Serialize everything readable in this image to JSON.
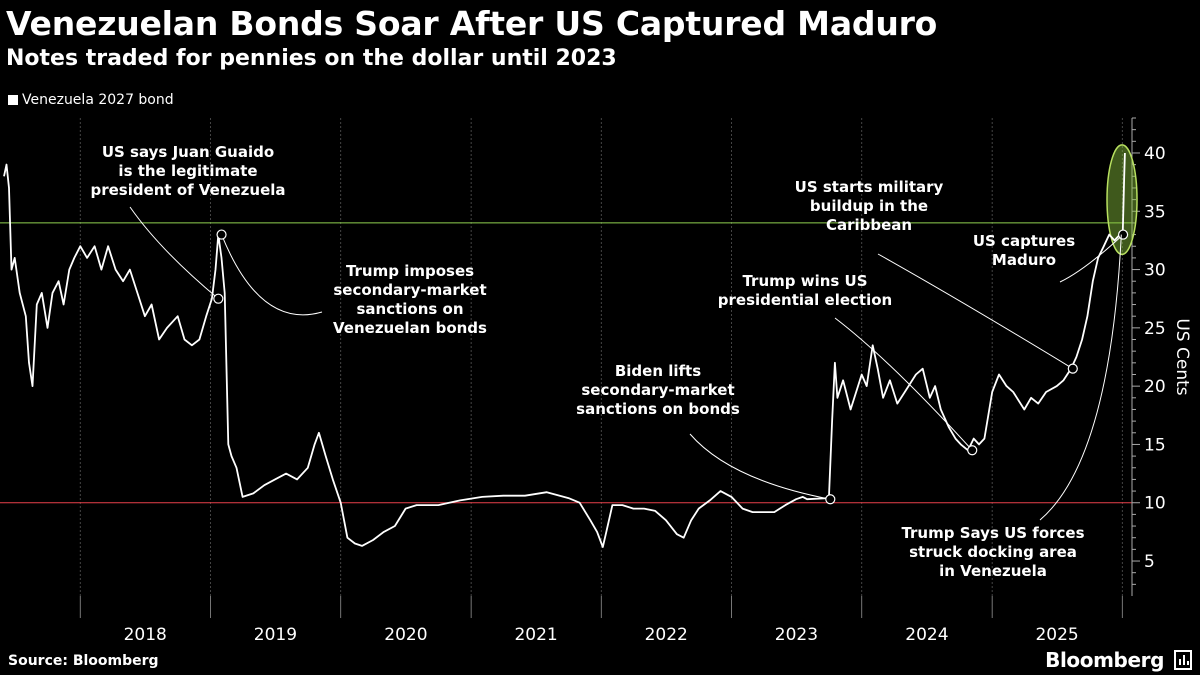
{
  "header": {
    "title": "Venezuelan Bonds Soar After US Captured Maduro",
    "subtitle": "Notes traded for pennies on the dollar until 2023"
  },
  "legend": {
    "label": "Venezuela 2027 bond"
  },
  "footer": {
    "source": "Source: Bloomberg",
    "brand": "Bloomberg"
  },
  "colors": {
    "background": "#000000",
    "line": "#ffffff",
    "grid": "#444444",
    "reference_high": "#8fd14f",
    "reference_low": "#e8414a",
    "highlight": "#8cc63f"
  },
  "chart_data": {
    "type": "line",
    "title": "Venezuelan Bonds Soar After US Captured Maduro",
    "subtitle": "Notes traded for pennies on the dollar until 2023",
    "ylabel": "US Cents",
    "ylim": [
      2,
      43
    ],
    "xlim": [
      "2017-06-01",
      "2026-01-28"
    ],
    "yticks": [
      5,
      10,
      15,
      20,
      25,
      30,
      35,
      40
    ],
    "xticks": [
      "2018",
      "2019",
      "2020",
      "2021",
      "2022",
      "2023",
      "2024",
      "2025"
    ],
    "grid": "vertical",
    "legend": "top-left",
    "reference_lines": [
      {
        "y": 34,
        "color": "#8fd14f"
      },
      {
        "y": 10,
        "color": "#e8414a"
      }
    ],
    "series": [
      {
        "name": "Venezuela 2027 bond",
        "points": [
          [
            "2017-06-01",
            38
          ],
          [
            "2017-06-08",
            39
          ],
          [
            "2017-06-15",
            37
          ],
          [
            "2017-06-22",
            30
          ],
          [
            "2017-07-01",
            31
          ],
          [
            "2017-07-15",
            28
          ],
          [
            "2017-08-01",
            26
          ],
          [
            "2017-08-10",
            22
          ],
          [
            "2017-08-20",
            20
          ],
          [
            "2017-09-01",
            27
          ],
          [
            "2017-09-15",
            28
          ],
          [
            "2017-10-01",
            25
          ],
          [
            "2017-10-15",
            28
          ],
          [
            "2017-11-01",
            29
          ],
          [
            "2017-11-15",
            27
          ],
          [
            "2017-12-01",
            30
          ],
          [
            "2017-12-15",
            31
          ],
          [
            "2018-01-01",
            32
          ],
          [
            "2018-01-20",
            31
          ],
          [
            "2018-02-10",
            32
          ],
          [
            "2018-03-01",
            30
          ],
          [
            "2018-03-20",
            32
          ],
          [
            "2018-04-10",
            30
          ],
          [
            "2018-05-01",
            29
          ],
          [
            "2018-05-20",
            30
          ],
          [
            "2018-06-10",
            28
          ],
          [
            "2018-07-01",
            26
          ],
          [
            "2018-07-20",
            27
          ],
          [
            "2018-08-10",
            24
          ],
          [
            "2018-09-01",
            25
          ],
          [
            "2018-10-01",
            26
          ],
          [
            "2018-10-20",
            24
          ],
          [
            "2018-11-10",
            23.5
          ],
          [
            "2018-12-01",
            24
          ],
          [
            "2018-12-20",
            26
          ],
          [
            "2019-01-05",
            27.5
          ],
          [
            "2019-01-15",
            30
          ],
          [
            "2019-01-23",
            33
          ],
          [
            "2019-02-01",
            31
          ],
          [
            "2019-02-10",
            28
          ],
          [
            "2019-02-20",
            15
          ],
          [
            "2019-03-01",
            14
          ],
          [
            "2019-03-15",
            13
          ],
          [
            "2019-04-01",
            10.5
          ],
          [
            "2019-05-01",
            10.8
          ],
          [
            "2019-06-01",
            11.5
          ],
          [
            "2019-07-01",
            12
          ],
          [
            "2019-08-01",
            12.5
          ],
          [
            "2019-09-01",
            12
          ],
          [
            "2019-10-01",
            13
          ],
          [
            "2019-10-20",
            15
          ],
          [
            "2019-11-01",
            16
          ],
          [
            "2019-11-20",
            14
          ],
          [
            "2019-12-10",
            12
          ],
          [
            "2020-01-01",
            10
          ],
          [
            "2020-01-20",
            7
          ],
          [
            "2020-02-10",
            6.5
          ],
          [
            "2020-03-01",
            6.3
          ],
          [
            "2020-04-01",
            6.8
          ],
          [
            "2020-05-01",
            7.5
          ],
          [
            "2020-06-01",
            8
          ],
          [
            "2020-07-01",
            9.5
          ],
          [
            "2020-08-01",
            9.8
          ],
          [
            "2020-10-01",
            9.8
          ],
          [
            "2020-12-01",
            10.2
          ],
          [
            "2021-02-01",
            10.5
          ],
          [
            "2021-04-01",
            10.6
          ],
          [
            "2021-06-01",
            10.6
          ],
          [
            "2021-08-01",
            10.9
          ],
          [
            "2021-10-01",
            10.4
          ],
          [
            "2021-11-01",
            10
          ],
          [
            "2021-12-01",
            8.5
          ],
          [
            "2021-12-20",
            7.5
          ],
          [
            "2022-01-05",
            6.2
          ],
          [
            "2022-01-15",
            7.5
          ],
          [
            "2022-02-01",
            9.8
          ],
          [
            "2022-03-01",
            9.8
          ],
          [
            "2022-04-01",
            9.5
          ],
          [
            "2022-05-01",
            9.5
          ],
          [
            "2022-06-01",
            9.3
          ],
          [
            "2022-07-01",
            8.5
          ],
          [
            "2022-08-01",
            7.3
          ],
          [
            "2022-08-20",
            7
          ],
          [
            "2022-09-10",
            8.5
          ],
          [
            "2022-10-01",
            9.5
          ],
          [
            "2022-11-01",
            10.2
          ],
          [
            "2022-12-01",
            11
          ],
          [
            "2023-01-01",
            10.5
          ],
          [
            "2023-02-01",
            9.5
          ],
          [
            "2023-03-01",
            9.2
          ],
          [
            "2023-04-01",
            9.2
          ],
          [
            "2023-05-01",
            9.2
          ],
          [
            "2023-06-01",
            9.8
          ],
          [
            "2023-07-01",
            10.3
          ],
          [
            "2023-07-20",
            10.5
          ],
          [
            "2023-08-01",
            10.3
          ],
          [
            "2023-10-01",
            10.4
          ],
          [
            "2023-10-10",
            17
          ],
          [
            "2023-10-18",
            22
          ],
          [
            "2023-10-25",
            19
          ],
          [
            "2023-11-10",
            20.5
          ],
          [
            "2023-12-01",
            18
          ],
          [
            "2024-01-01",
            21
          ],
          [
            "2024-01-15",
            20
          ],
          [
            "2024-02-01",
            23.5
          ],
          [
            "2024-02-15",
            21.5
          ],
          [
            "2024-03-01",
            19
          ],
          [
            "2024-03-20",
            20.5
          ],
          [
            "2024-04-10",
            18.5
          ],
          [
            "2024-05-01",
            19.5
          ],
          [
            "2024-06-01",
            21
          ],
          [
            "2024-06-20",
            21.5
          ],
          [
            "2024-07-10",
            19
          ],
          [
            "2024-07-25",
            20
          ],
          [
            "2024-08-10",
            18
          ],
          [
            "2024-09-01",
            16.5
          ],
          [
            "2024-09-20",
            15.5
          ],
          [
            "2024-10-05",
            15
          ],
          [
            "2024-10-25",
            14.5
          ],
          [
            "2024-11-10",
            15.5
          ],
          [
            "2024-11-25",
            15
          ],
          [
            "2024-12-10",
            15.5
          ],
          [
            "2025-01-01",
            19.5
          ],
          [
            "2025-01-20",
            21
          ],
          [
            "2025-02-10",
            20
          ],
          [
            "2025-03-01",
            19.5
          ],
          [
            "2025-04-01",
            18
          ],
          [
            "2025-04-20",
            19
          ],
          [
            "2025-05-10",
            18.5
          ],
          [
            "2025-06-01",
            19.5
          ],
          [
            "2025-07-01",
            20
          ],
          [
            "2025-07-20",
            20.5
          ],
          [
            "2025-08-10",
            21.5
          ],
          [
            "2025-08-25",
            22.5
          ],
          [
            "2025-09-10",
            24
          ],
          [
            "2025-09-25",
            26
          ],
          [
            "2025-10-10",
            29
          ],
          [
            "2025-10-25",
            31
          ],
          [
            "2025-11-10",
            32
          ],
          [
            "2025-11-25",
            33
          ],
          [
            "2025-12-10",
            32.5
          ],
          [
            "2025-12-25",
            33
          ],
          [
            "2026-01-02",
            33
          ],
          [
            "2026-01-06",
            38
          ],
          [
            "2026-01-08",
            40
          ]
        ]
      }
    ],
    "annotations": [
      {
        "lines": [
          "US says Juan Guaido",
          "is the legitimate",
          "president of Venezuela"
        ],
        "x": "2019-01-23",
        "y": 27.5
      },
      {
        "lines": [
          "Trump imposes",
          "secondary-market",
          "sanctions on",
          "Venezuelan bonds"
        ],
        "x": "2019-02-01",
        "y": 33
      },
      {
        "lines": [
          "Biden lifts",
          "secondary-market",
          "sanctions on bonds"
        ],
        "x": "2023-10-05",
        "y": 10.3
      },
      {
        "lines": [
          "Trump wins US",
          "presidential election"
        ],
        "x": "2024-11-06",
        "y": 14.5
      },
      {
        "lines": [
          "US starts military",
          "buildup in the",
          "Caribbean"
        ],
        "x": "2025-08-15",
        "y": 21.5
      },
      {
        "lines": [
          "US captures",
          "Maduro"
        ],
        "x": "2026-01-03",
        "y": 33
      },
      {
        "lines": [
          "Trump Says US forces",
          "struck docking area",
          "in Venezuela"
        ],
        "x": "2025-12-29",
        "y": 33
      }
    ]
  }
}
